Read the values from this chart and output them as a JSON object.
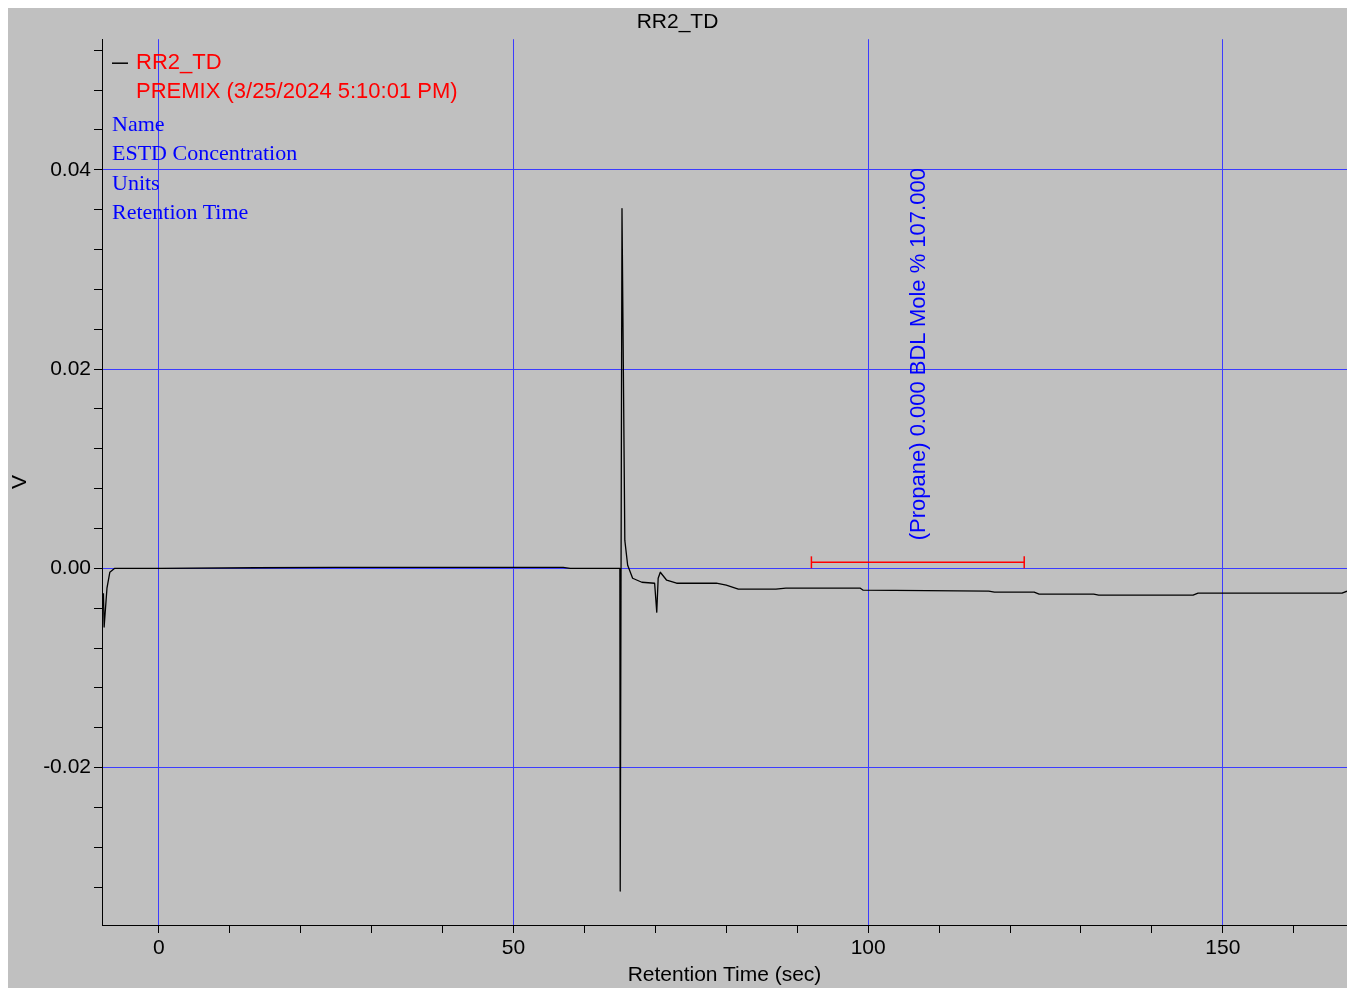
{
  "chart_data": {
    "type": "line",
    "title": "RR2_TD",
    "subtitle": "PREMIX (3/25/2024 5:10:01 PM)",
    "xlabel": "Retention Time (sec)",
    "ylabel": "V",
    "x": [
      -7.8,
      -7.7,
      -7.3,
      -6.9,
      -6.2,
      0,
      25,
      57,
      58,
      65.0,
      65.05,
      65.3,
      65.7,
      66.1,
      66.8,
      68.1,
      69.9,
      70.2,
      70.4,
      70.7,
      71.6,
      73.0,
      78.6,
      80.0,
      81.7,
      87,
      88.4,
      98.9,
      99.3,
      117,
      117.8,
      123.4,
      124.1,
      131.8,
      132.5,
      145.8,
      146.5,
      166.8,
      167.5
    ],
    "series": [
      {
        "name": "RR2_TD",
        "color": "#000000",
        "values": [
          -0.0025,
          -0.0059,
          -0.002,
          -0.0004,
          0.0,
          0.0,
          0.0001,
          0.0001,
          0.0,
          0.0,
          -0.0324,
          0.0361,
          0.0028,
          0.0003,
          -0.001,
          -0.0014,
          -0.0015,
          -0.0044,
          -0.001,
          -0.0004,
          -0.0012,
          -0.0015,
          -0.0015,
          -0.0017,
          -0.0021,
          -0.0021,
          -0.002,
          -0.002,
          -0.0022,
          -0.0023,
          -0.0024,
          -0.0024,
          -0.0026,
          -0.0026,
          -0.0027,
          -0.0027,
          -0.0025,
          -0.0025,
          -0.0023
        ]
      },
      {
        "type": "line",
        "color": "#ff0000",
        "marker": "none",
        "x": [
          92,
          122
        ],
        "values": [
          0.0006,
          0.0006
        ],
        "errors": [
          0.0006,
          0.0006
        ]
      }
    ],
    "xlim": [
      -8,
      167.5
    ],
    "ylim": [
      -0.0358,
      0.0531
    ],
    "xticks": [
      0,
      {
        "value": 10,
        "label": null
      },
      {
        "value": 20,
        "label": null
      },
      {
        "value": 30,
        "label": null
      },
      {
        "value": 40,
        "label": null
      },
      50,
      {
        "value": 60,
        "label": null
      },
      {
        "value": 70,
        "label": null
      },
      {
        "value": 80,
        "label": null
      },
      {
        "value": 90,
        "label": null
      },
      100,
      {
        "value": 110,
        "label": null
      },
      {
        "value": 120,
        "label": null
      },
      {
        "value": 130,
        "label": null
      },
      {
        "value": 140,
        "label": null
      },
      150,
      {
        "value": 160,
        "label": null
      }
    ],
    "yticks": [
      {
        "value": -0.032,
        "label": null
      },
      {
        "value": -0.028,
        "label": null
      },
      {
        "value": -0.024,
        "label": null
      },
      {
        "value": -0.02,
        "label": "-0.02"
      },
      {
        "value": -0.016,
        "label": null
      },
      {
        "value": -0.012,
        "label": null
      },
      {
        "value": -0.008,
        "label": null
      },
      {
        "value": -0.004,
        "label": null
      },
      {
        "value": 0,
        "label": "0.00"
      },
      {
        "value": 0.004,
        "label": null
      },
      {
        "value": 0.008,
        "label": null
      },
      {
        "value": 0.012,
        "label": null
      },
      {
        "value": 0.016,
        "label": null
      },
      {
        "value": 0.02,
        "label": "0.02"
      },
      {
        "value": 0.024,
        "label": null
      },
      {
        "value": 0.028,
        "label": null
      },
      {
        "value": 0.032,
        "label": null
      },
      {
        "value": 0.036,
        "label": null
      },
      {
        "value": 0.04,
        "label": "0.04"
      },
      {
        "value": 0.044,
        "label": null
      },
      {
        "value": 0.048,
        "label": null
      },
      {
        "value": 0.052,
        "label": null
      }
    ],
    "grid": true,
    "legend": "top left",
    "marker": "none",
    "line_style": "solid",
    "annotations": [
      "Name",
      "ESTD Concentration",
      "Units",
      "Retention Time",
      "(Propane) 0.000 BDL Mole % 107.000"
    ]
  }
}
